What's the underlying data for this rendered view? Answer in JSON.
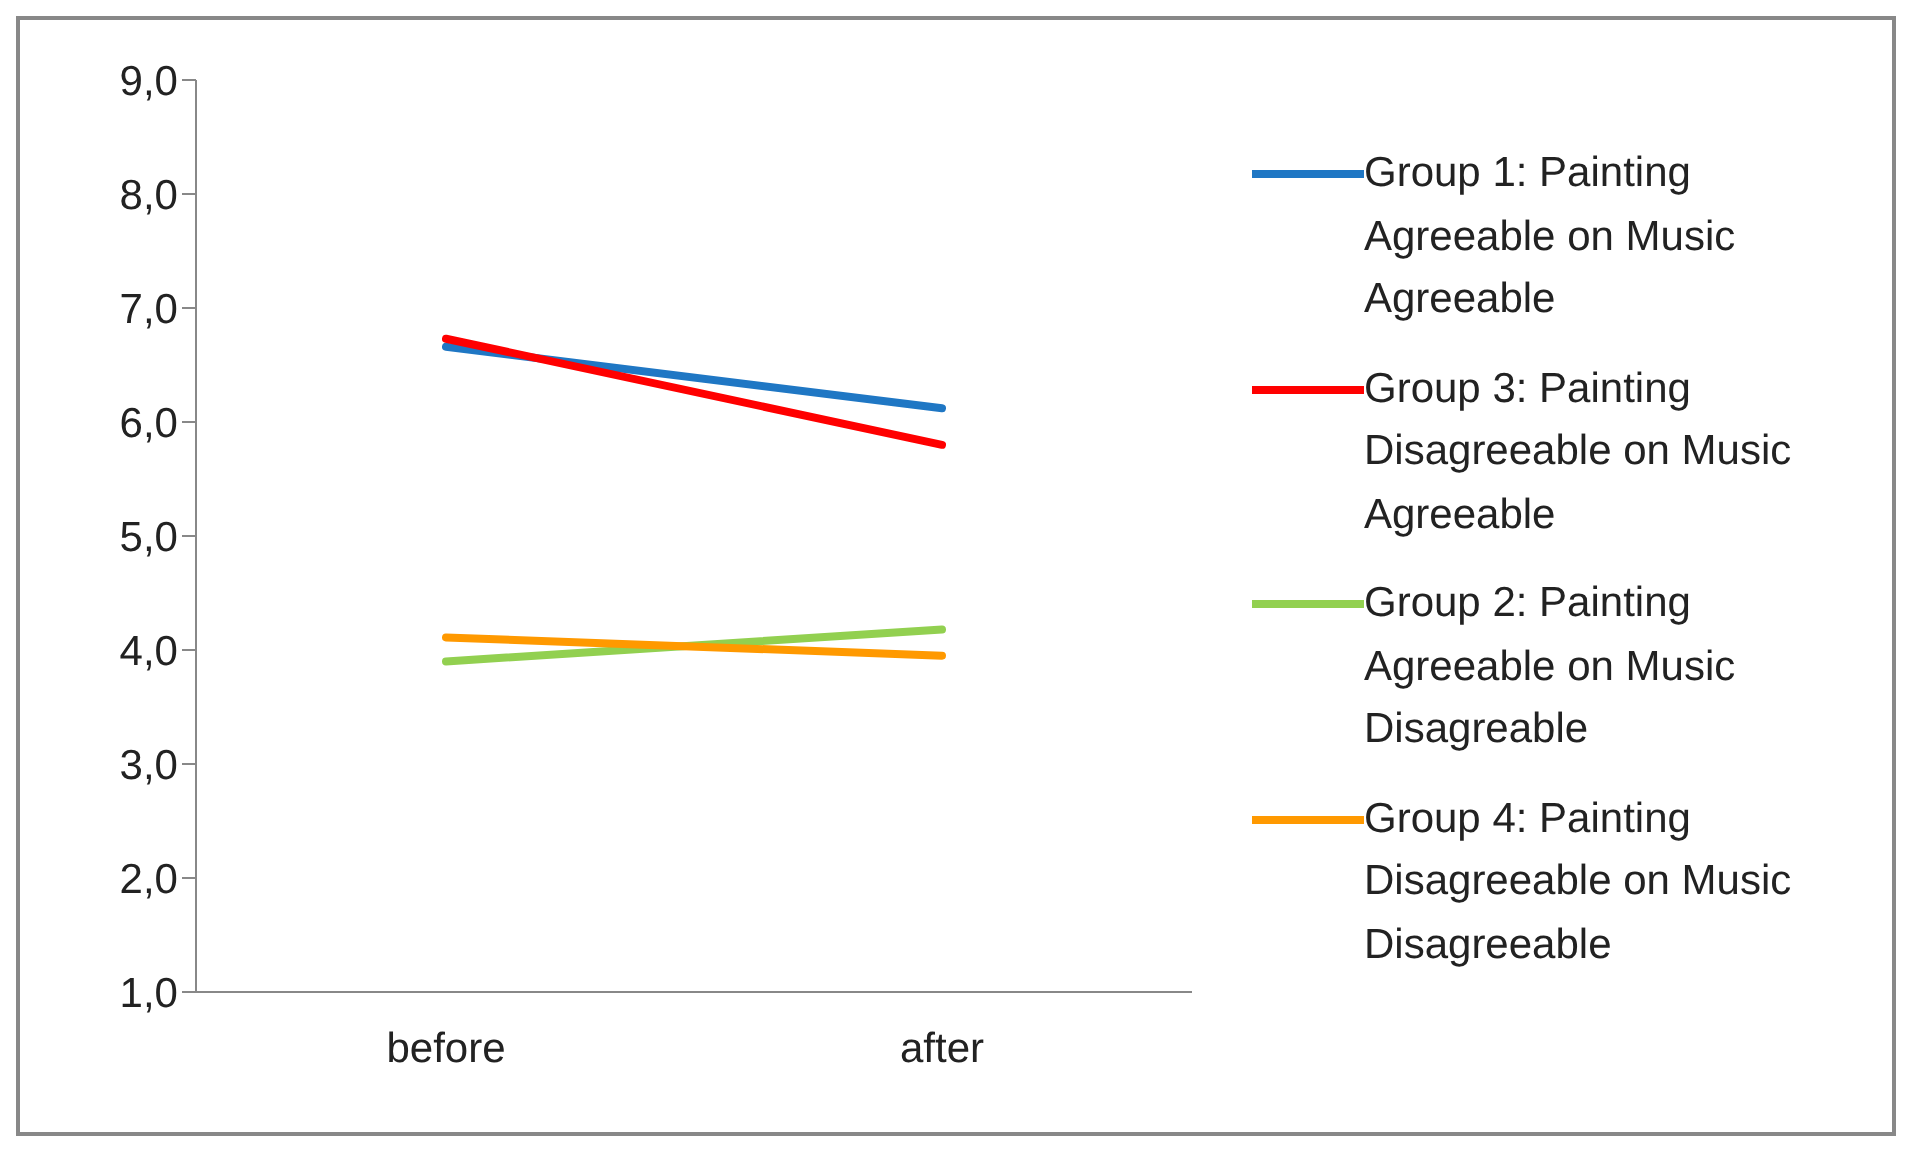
{
  "chart_data": {
    "type": "line",
    "categories": [
      "before",
      "after"
    ],
    "series": [
      {
        "name": "Group 1: Painting Agreeable on Music Agreeable",
        "color": "#1f77c4",
        "values": [
          6.66,
          6.12
        ]
      },
      {
        "name": "Group 3: Painting Disagreeable on Music Agreeable",
        "color": "#ff0000",
        "values": [
          6.73,
          5.8
        ]
      },
      {
        "name": "Group 2: Painting Agreeable on Music Disagreable",
        "color": "#92d050",
        "values": [
          3.9,
          4.18
        ]
      },
      {
        "name": "Group 4: Painting Disagreeable on Music Disagreeable",
        "color": "#ff9900",
        "values": [
          4.11,
          3.95
        ]
      }
    ],
    "ylim": [
      1,
      9
    ],
    "yticks": [
      {
        "value": 1,
        "label": "1,0"
      },
      {
        "value": 2,
        "label": "2,0"
      },
      {
        "value": 3,
        "label": "3,0"
      },
      {
        "value": 4,
        "label": "4,0"
      },
      {
        "value": 5,
        "label": "5,0"
      },
      {
        "value": 6,
        "label": "6,0"
      },
      {
        "value": 7,
        "label": "7,0"
      },
      {
        "value": 8,
        "label": "8,0"
      },
      {
        "value": 9,
        "label": "9,0"
      }
    ],
    "grid": false,
    "legend": "right",
    "marker": "none",
    "line_style": "solid"
  }
}
